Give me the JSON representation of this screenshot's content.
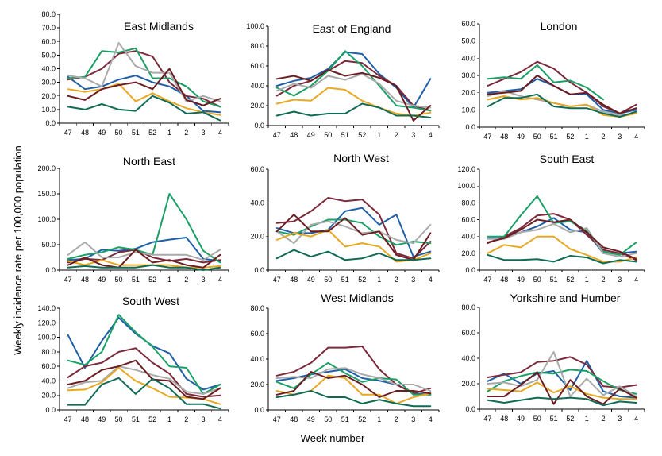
{
  "ylabel": "Weekly incidence rate per 100,000 population",
  "xlabel": "Week number",
  "chart_data": [
    {
      "type": "line",
      "title": "East Midlands",
      "categories": [
        "47",
        "48",
        "49",
        "50",
        "51",
        "52",
        "1",
        "2",
        "3",
        "4"
      ],
      "ylim": [
        0,
        80
      ],
      "yticks": [
        "0.0",
        "10.0",
        "20.0",
        "30.0",
        "40.0",
        "50.0",
        "60.0",
        "70.0",
        "80.0"
      ],
      "series": [
        {
          "color": "#1f5fa6",
          "values": [
            34,
            25,
            27,
            32,
            35,
            30,
            27,
            20,
            9,
            8
          ]
        },
        {
          "color": "#7b2a3b",
          "values": [
            32,
            34,
            40,
            51,
            53,
            49,
            30,
            20,
            18,
            12
          ]
        },
        {
          "color": "#1aa065",
          "values": [
            33,
            34,
            53,
            52,
            55,
            33,
            33,
            27,
            16,
            12
          ]
        },
        {
          "color": "#aaaaaa",
          "values": [
            35,
            33,
            27,
            59,
            42,
            37,
            37,
            16,
            20,
            16
          ]
        },
        {
          "color": "#e8a820",
          "values": [
            25,
            23,
            25,
            29,
            16,
            22,
            16,
            11,
            8,
            6
          ]
        },
        {
          "color": "#6b1d22",
          "values": [
            20,
            17,
            25,
            28,
            30,
            25,
            40,
            17,
            13,
            18
          ]
        },
        {
          "color": "#0f6b55",
          "values": [
            12,
            10,
            14,
            10,
            9,
            20,
            15,
            7,
            8,
            2
          ]
        }
      ]
    },
    {
      "type": "line",
      "title": "East of England",
      "categories": [
        "47",
        "48",
        "49",
        "50",
        "51",
        "52",
        "1",
        "2",
        "3",
        "4"
      ],
      "ylim": [
        0,
        100
      ],
      "yticks": [
        "0.0",
        "20.0",
        "40.0",
        "60.0",
        "80.0",
        "100.0"
      ],
      "series": [
        {
          "color": "#1f5fa6",
          "values": [
            40,
            45,
            48,
            57,
            74,
            72,
            52,
            38,
            18,
            47
          ]
        },
        {
          "color": "#7b2a3b",
          "values": [
            30,
            40,
            45,
            55,
            65,
            63,
            50,
            40,
            20,
            15
          ]
        },
        {
          "color": "#1aa065",
          "values": [
            38,
            30,
            40,
            55,
            75,
            60,
            40,
            20,
            18,
            15
          ]
        },
        {
          "color": "#aaaaaa",
          "values": [
            35,
            42,
            38,
            50,
            46,
            52,
            42,
            25,
            20,
            18
          ]
        },
        {
          "color": "#e8a820",
          "values": [
            22,
            26,
            25,
            38,
            36,
            25,
            18,
            12,
            10,
            13
          ]
        },
        {
          "color": "#6b1d22",
          "values": [
            47,
            50,
            45,
            56,
            50,
            53,
            48,
            40,
            5,
            20
          ]
        },
        {
          "color": "#0f6b55",
          "values": [
            10,
            14,
            10,
            12,
            12,
            22,
            18,
            10,
            10,
            8
          ]
        }
      ]
    },
    {
      "type": "line",
      "title": "London",
      "categories": [
        "47",
        "48",
        "49",
        "50",
        "51",
        "52",
        "1",
        "2",
        "3",
        "4"
      ],
      "ylim": [
        0,
        60
      ],
      "yticks": [
        "0.0",
        "10.0",
        "20.0",
        "30.0",
        "40.0",
        "50.0",
        "60.0"
      ],
      "series": [
        {
          "color": "#1f5fa6",
          "values": [
            20,
            21,
            22,
            28,
            24,
            19,
            19,
            10,
            8,
            10
          ]
        },
        {
          "color": "#7b2a3b",
          "values": [
            24,
            28,
            32,
            38,
            34,
            26,
            20,
            12,
            8,
            13
          ]
        },
        {
          "color": "#1aa065",
          "values": [
            28,
            29,
            28,
            36,
            26,
            27,
            23,
            16,
            null,
            null
          ]
        },
        {
          "color": "#aaaaaa",
          "values": [
            18,
            21,
            18,
            16,
            14,
            12,
            13,
            9,
            7,
            8
          ]
        },
        {
          "color": "#e8a820",
          "values": [
            16,
            18,
            16,
            17,
            14,
            12,
            13,
            7,
            6,
            8
          ]
        },
        {
          "color": "#6b1d22",
          "values": [
            19,
            20,
            21,
            30,
            24,
            19,
            20,
            13,
            8,
            11
          ]
        },
        {
          "color": "#0f6b55",
          "values": [
            12,
            17,
            17,
            19,
            12,
            11,
            11,
            8,
            6,
            9
          ]
        }
      ]
    },
    {
      "type": "line",
      "title": "North East",
      "categories": [
        "47",
        "48",
        "49",
        "50",
        "51",
        "52",
        "1",
        "2",
        "3",
        "4"
      ],
      "ylim": [
        0,
        200
      ],
      "yticks": [
        "0.0",
        "50.0",
        "100.0",
        "150.0",
        "200.0"
      ],
      "series": [
        {
          "color": "#1f5fa6",
          "values": [
            20,
            22,
            40,
            38,
            42,
            55,
            60,
            64,
            22,
            18
          ]
        },
        {
          "color": "#7b2a3b",
          "values": [
            15,
            22,
            20,
            35,
            40,
            25,
            18,
            22,
            15,
            20
          ]
        },
        {
          "color": "#1aa065",
          "values": [
            22,
            30,
            35,
            45,
            40,
            30,
            150,
            100,
            38,
            15
          ]
        },
        {
          "color": "#aaaaaa",
          "values": [
            30,
            55,
            25,
            25,
            35,
            30,
            30,
            30,
            20,
            40
          ]
        },
        {
          "color": "#e8a820",
          "values": [
            18,
            10,
            20,
            10,
            10,
            10,
            10,
            5,
            5,
            8
          ]
        },
        {
          "color": "#6b1d22",
          "values": [
            10,
            25,
            10,
            5,
            40,
            15,
            20,
            10,
            5,
            30
          ]
        },
        {
          "color": "#0f6b55",
          "values": [
            5,
            8,
            5,
            5,
            5,
            10,
            5,
            5,
            0,
            5
          ]
        }
      ]
    },
    {
      "type": "line",
      "title": "North West",
      "categories": [
        "47",
        "48",
        "49",
        "50",
        "51",
        "52",
        "1",
        "2",
        "3",
        "4"
      ],
      "ylim": [
        0,
        60
      ],
      "yticks": [
        "0.0",
        "20.0",
        "40.0",
        "60.0"
      ],
      "series": [
        {
          "color": "#1f5fa6",
          "values": [
            25,
            22,
            22,
            24,
            35,
            37,
            27,
            33,
            8,
            11
          ]
        },
        {
          "color": "#7b2a3b",
          "values": [
            28,
            29,
            35,
            43,
            41,
            42,
            33,
            10,
            7,
            17
          ]
        },
        {
          "color": "#1aa065",
          "values": [
            23,
            21,
            26,
            30,
            30,
            28,
            20,
            15,
            17,
            16
          ]
        },
        {
          "color": "#aaaaaa",
          "values": [
            23,
            16,
            27,
            29,
            26,
            22,
            23,
            18,
            16,
            27
          ]
        },
        {
          "color": "#e8a820",
          "values": [
            18,
            22,
            20,
            24,
            14,
            16,
            14,
            5,
            6,
            10
          ]
        },
        {
          "color": "#6b1d22",
          "values": [
            23,
            33,
            23,
            23,
            31,
            21,
            23,
            9,
            6,
            22
          ]
        },
        {
          "color": "#0f6b55",
          "values": [
            7,
            12,
            8,
            11,
            6,
            7,
            10,
            6,
            6,
            7
          ]
        }
      ]
    },
    {
      "type": "line",
      "title": "South East",
      "categories": [
        "47",
        "48",
        "49",
        "50",
        "51",
        "52",
        "1",
        "2",
        "3",
        "4"
      ],
      "ylim": [
        0,
        120
      ],
      "yticks": [
        "0.0",
        "20.0",
        "40.0",
        "60.0",
        "80.0",
        "100.0",
        "120.0"
      ],
      "series": [
        {
          "color": "#1f5fa6",
          "values": [
            38,
            38,
            45,
            52,
            62,
            48,
            45,
            20,
            20,
            22
          ]
        },
        {
          "color": "#7b2a3b",
          "values": [
            32,
            40,
            50,
            65,
            67,
            60,
            42,
            24,
            20,
            12
          ]
        },
        {
          "color": "#1aa065",
          "values": [
            40,
            40,
            65,
            88,
            56,
            58,
            47,
            22,
            18,
            33
          ]
        },
        {
          "color": "#aaaaaa",
          "values": [
            37,
            37,
            45,
            48,
            55,
            45,
            50,
            20,
            16,
            20
          ]
        },
        {
          "color": "#e8a820",
          "values": [
            20,
            30,
            27,
            40,
            40,
            25,
            18,
            10,
            10,
            15
          ]
        },
        {
          "color": "#6b1d22",
          "values": [
            33,
            38,
            48,
            60,
            57,
            60,
            45,
            27,
            22,
            13
          ]
        },
        {
          "color": "#0f6b55",
          "values": [
            18,
            12,
            12,
            13,
            10,
            17,
            15,
            8,
            12,
            10
          ]
        }
      ]
    },
    {
      "type": "line",
      "title": "South West",
      "categories": [
        "47",
        "48",
        "49",
        "50",
        "51",
        "52",
        "1",
        "2",
        "3",
        "4"
      ],
      "ylim": [
        0,
        140
      ],
      "yticks": [
        "0.0",
        "20.0",
        "40.0",
        "60.0",
        "80.0",
        "100.0",
        "120.0",
        "140.0"
      ],
      "series": [
        {
          "color": "#1f5fa6",
          "values": [
            103,
            58,
            95,
            127,
            105,
            88,
            78,
            43,
            28,
            35
          ]
        },
        {
          "color": "#7b2a3b",
          "values": [
            45,
            60,
            65,
            80,
            85,
            65,
            50,
            22,
            18,
            20
          ]
        },
        {
          "color": "#1aa065",
          "values": [
            68,
            62,
            80,
            131,
            107,
            87,
            60,
            58,
            22,
            35
          ]
        },
        {
          "color": "#aaaaaa",
          "values": [
            30,
            38,
            40,
            60,
            55,
            48,
            43,
            25,
            22,
            30
          ]
        },
        {
          "color": "#e8a820",
          "values": [
            27,
            28,
            38,
            58,
            40,
            30,
            18,
            17,
            15,
            8
          ]
        },
        {
          "color": "#6b1d22",
          "values": [
            35,
            40,
            55,
            60,
            68,
            42,
            40,
            18,
            15,
            30
          ]
        },
        {
          "color": "#0f6b55",
          "values": [
            7,
            7,
            35,
            44,
            22,
            43,
            30,
            8,
            8,
            2
          ]
        }
      ]
    },
    {
      "type": "line",
      "title": "West Midlands",
      "categories": [
        "47",
        "48",
        "49",
        "50",
        "51",
        "52",
        "1",
        "2",
        "3",
        "4"
      ],
      "ylim": [
        0,
        80
      ],
      "yticks": [
        "0.0",
        "20.0",
        "40.0",
        "60.0",
        "80.0"
      ],
      "series": [
        {
          "color": "#1f5fa6",
          "values": [
            23,
            25,
            28,
            30,
            32,
            25,
            23,
            20,
            13,
            12
          ]
        },
        {
          "color": "#7b2a3b",
          "values": [
            27,
            30,
            37,
            49,
            49,
            50,
            32,
            20,
            13,
            17
          ]
        },
        {
          "color": "#1aa065",
          "values": [
            22,
            17,
            28,
            37,
            29,
            22,
            25,
            24,
            12,
            12
          ]
        },
        {
          "color": "#aaaaaa",
          "values": [
            25,
            26,
            25,
            32,
            33,
            28,
            25,
            20,
            20,
            15
          ]
        },
        {
          "color": "#e8a820",
          "values": [
            15,
            12,
            15,
            27,
            25,
            12,
            12,
            5,
            10,
            13
          ]
        },
        {
          "color": "#6b1d22",
          "values": [
            12,
            15,
            30,
            25,
            27,
            20,
            10,
            15,
            15,
            13
          ]
        },
        {
          "color": "#0f6b55",
          "values": [
            10,
            12,
            15,
            10,
            10,
            5,
            8,
            5,
            3,
            3
          ]
        }
      ]
    },
    {
      "type": "line",
      "title": "Yorkshire and Humber",
      "categories": [
        "47",
        "48",
        "49",
        "50",
        "51",
        "52",
        "1",
        "2",
        "3",
        "4"
      ],
      "ylim": [
        0,
        80
      ],
      "yticks": [
        "0.0",
        "20.0",
        "40.0",
        "60.0",
        "80.0"
      ],
      "series": [
        {
          "color": "#1f5fa6",
          "values": [
            22,
            28,
            20,
            28,
            30,
            15,
            38,
            14,
            10,
            9
          ]
        },
        {
          "color": "#7b2a3b",
          "values": [
            25,
            27,
            29,
            37,
            38,
            41,
            35,
            18,
            17,
            19
          ]
        },
        {
          "color": "#1aa065",
          "values": [
            14,
            22,
            26,
            29,
            28,
            31,
            30,
            22,
            15,
            12
          ]
        },
        {
          "color": "#aaaaaa",
          "values": [
            20,
            21,
            18,
            23,
            45,
            10,
            24,
            11,
            18,
            10
          ]
        },
        {
          "color": "#e8a820",
          "values": [
            16,
            15,
            14,
            21,
            13,
            18,
            12,
            9,
            8,
            8
          ]
        },
        {
          "color": "#6b1d22",
          "values": [
            10,
            10,
            19,
            29,
            4,
            23,
            10,
            4,
            16,
            9
          ]
        },
        {
          "color": "#0f6b55",
          "values": [
            7,
            5,
            7,
            9,
            8,
            9,
            8,
            3,
            6,
            5
          ]
        }
      ]
    }
  ]
}
